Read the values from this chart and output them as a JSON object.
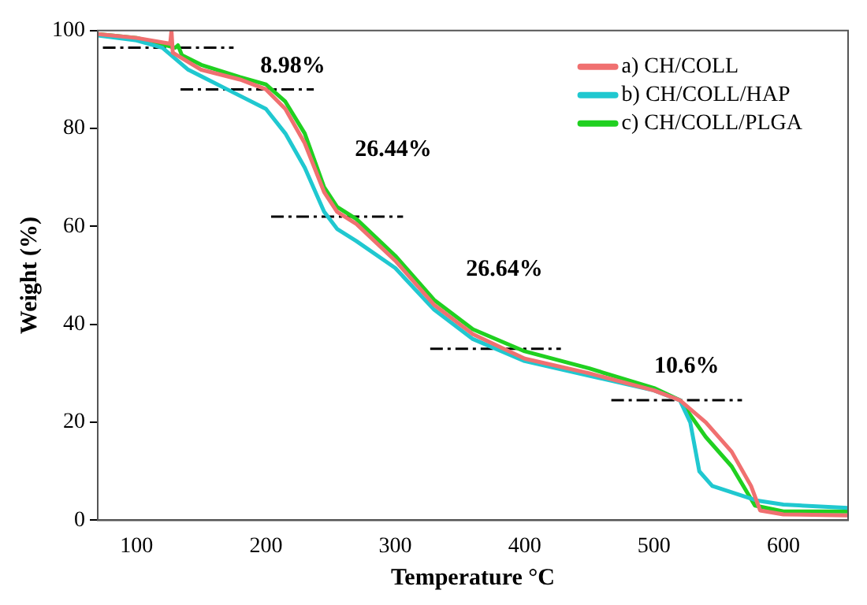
{
  "chart_data": {
    "type": "line",
    "xlabel": "Temperature °C",
    "ylabel": "Weight (%)",
    "xlim": [
      70,
      650
    ],
    "xticks": [
      100,
      200,
      300,
      400,
      500,
      600
    ],
    "ylim": [
      0,
      100
    ],
    "yticks": [
      0,
      20,
      40,
      60,
      80,
      100
    ],
    "grid": false,
    "legend": "top right",
    "marker": "none",
    "line_style": "solid",
    "series": [
      {
        "name": "a) CH/COLL",
        "color": "#f07070",
        "x": [
          70,
          100,
          126,
          127,
          128,
          150,
          180,
          200,
          215,
          230,
          245,
          255,
          270,
          300,
          330,
          360,
          400,
          450,
          500,
          520,
          540,
          560,
          575,
          582,
          600,
          650
        ],
        "values": [
          99.3,
          98.5,
          97.3,
          100,
          95.5,
          92,
          90,
          88,
          84,
          77,
          67,
          63,
          60.5,
          53,
          44,
          38,
          33,
          30,
          26.5,
          24.5,
          20,
          14,
          7,
          2,
          1.2,
          1
        ]
      },
      {
        "name": "b) CH/COLL/HAP",
        "color": "#20c8d0",
        "x": [
          70,
          100,
          120,
          140,
          170,
          200,
          215,
          230,
          245,
          255,
          270,
          300,
          330,
          360,
          400,
          450,
          500,
          520,
          528,
          535,
          545,
          580,
          600,
          650
        ],
        "values": [
          99,
          98,
          96.5,
          92,
          88,
          84,
          79,
          72,
          63,
          59.5,
          57,
          51.5,
          43,
          37,
          32.5,
          29.5,
          26.5,
          24.5,
          20,
          10,
          7,
          4,
          3.2,
          2.5
        ]
      },
      {
        "name": "c) CH/COLL/PLGA",
        "color": "#20d020",
        "x": [
          70,
          100,
          130,
          132,
          135,
          150,
          180,
          200,
          215,
          230,
          245,
          255,
          270,
          300,
          330,
          360,
          400,
          450,
          500,
          520,
          540,
          560,
          578,
          600,
          650
        ],
        "values": [
          99.3,
          98.5,
          96.5,
          97,
          95,
          93,
          90.5,
          89,
          85.5,
          79,
          68,
          64,
          61.5,
          54,
          45,
          39,
          34.5,
          31,
          27,
          24.5,
          17,
          11,
          3,
          1.8,
          1.8
        ]
      },
      {
        "color": "#000000",
        "line_style": "dashed",
        "x": [
          74,
          175
        ],
        "values": [
          96.5,
          96.5
        ]
      },
      {
        "color": "#000000",
        "line_style": "dashed",
        "x": [
          134,
          237
        ],
        "values": [
          88,
          88
        ]
      },
      {
        "color": "#000000",
        "line_style": "dashed",
        "x": [
          204,
          306
        ],
        "values": [
          62,
          62
        ]
      },
      {
        "color": "#000000",
        "line_style": "dashed",
        "x": [
          327,
          428
        ],
        "values": [
          35,
          35
        ]
      },
      {
        "color": "#000000",
        "line_style": "dashed",
        "x": [
          467,
          568
        ],
        "values": [
          24.5,
          24.5
        ]
      }
    ],
    "annotations": [
      "8.98%",
      "26.44%",
      "26.64%",
      "10.6%"
    ]
  }
}
